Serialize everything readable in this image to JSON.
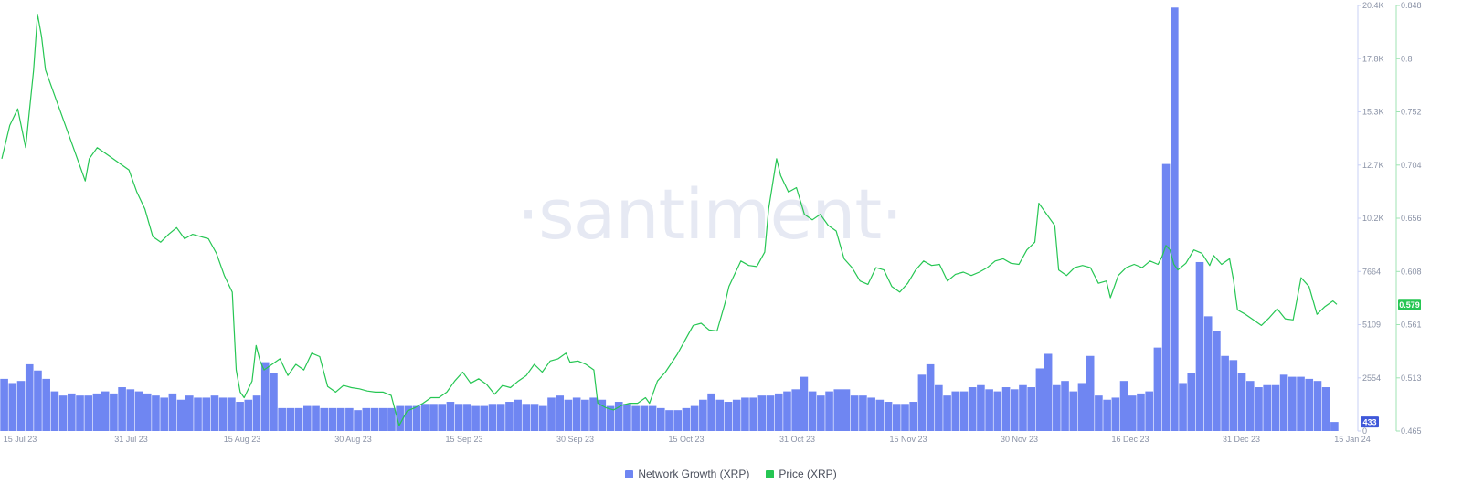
{
  "watermark": "·santiment·",
  "legend": [
    {
      "label": "Network Growth (XRP)",
      "color": "#6f86f2"
    },
    {
      "label": "Price (XRP)",
      "color": "#26c653"
    }
  ],
  "badges": {
    "price_current": "0.579",
    "growth_current": "433"
  },
  "chart_data": {
    "type": "bar+line",
    "title": "",
    "x_ticks": [
      "15 Jul 23",
      "31 Jul 23",
      "15 Aug 23",
      "30 Aug 23",
      "15 Sep 23",
      "30 Sep 23",
      "15 Oct 23",
      "31 Oct 23",
      "15 Nov 23",
      "30 Nov 23",
      "16 Dec 23",
      "31 Dec 23",
      "15 Jan 24"
    ],
    "y_left_ticks": [
      "0",
      "2554",
      "5109",
      "7664",
      "10.2K",
      "12.7K",
      "15.3K",
      "17.8K",
      "20.4K"
    ],
    "y_right_ticks": [
      "0.465",
      "0.513",
      "0.561",
      "0.608",
      "0.656",
      "0.704",
      "0.752",
      "0.8",
      "0.848"
    ],
    "growth_ylim": [
      0,
      20400
    ],
    "price_ylim": [
      0.465,
      0.848
    ],
    "series": [
      {
        "name": "Network Growth (XRP)",
        "kind": "bar",
        "color": "#6f86f2",
        "values": [
          2500,
          2300,
          2400,
          3200,
          2900,
          2500,
          1900,
          1700,
          1800,
          1700,
          1700,
          1800,
          1900,
          1800,
          2100,
          2000,
          1900,
          1800,
          1700,
          1600,
          1800,
          1500,
          1700,
          1600,
          1600,
          1700,
          1600,
          1600,
          1400,
          1500,
          1700,
          3300,
          2800,
          1100,
          1100,
          1100,
          1200,
          1200,
          1100,
          1100,
          1100,
          1100,
          1000,
          1100,
          1100,
          1100,
          1100,
          1200,
          1200,
          1200,
          1300,
          1300,
          1300,
          1400,
          1300,
          1300,
          1200,
          1200,
          1300,
          1300,
          1400,
          1500,
          1300,
          1300,
          1200,
          1600,
          1700,
          1500,
          1600,
          1500,
          1600,
          1500,
          1200,
          1400,
          1300,
          1200,
          1200,
          1200,
          1100,
          1000,
          1000,
          1100,
          1200,
          1500,
          1800,
          1500,
          1400,
          1500,
          1600,
          1600,
          1700,
          1700,
          1800,
          1900,
          2000,
          2600,
          1900,
          1700,
          1900,
          2000,
          2000,
          1700,
          1700,
          1600,
          1500,
          1400,
          1300,
          1300,
          1400,
          2700,
          3200,
          2200,
          1700,
          1900,
          1900,
          2100,
          2200,
          2000,
          1900,
          2100,
          2000,
          2200,
          2100,
          3000,
          3700,
          2200,
          2400,
          1900,
          2300,
          3600,
          1700,
          1500,
          1600,
          2400,
          1700,
          1800,
          1900,
          4000,
          12800,
          20300,
          2300,
          2800,
          8100,
          5500,
          4800,
          3600,
          3400,
          2800,
          2400,
          2100,
          2200,
          2200,
          2700,
          2600,
          2600,
          2500,
          2400,
          2100,
          433
        ]
      },
      {
        "name": "Price (XRP)",
        "kind": "line",
        "color": "#26c653",
        "points": [
          [
            0,
            0.71
          ],
          [
            2,
            0.74
          ],
          [
            4,
            0.755
          ],
          [
            6,
            0.72
          ],
          [
            8,
            0.79
          ],
          [
            9,
            0.84
          ],
          [
            10,
            0.82
          ],
          [
            11,
            0.79
          ],
          [
            13,
            0.77
          ],
          [
            16,
            0.74
          ],
          [
            18,
            0.72
          ],
          [
            20,
            0.7
          ],
          [
            21,
            0.69
          ],
          [
            22,
            0.71
          ],
          [
            24,
            0.72
          ],
          [
            26,
            0.715
          ],
          [
            28,
            0.71
          ],
          [
            30,
            0.705
          ],
          [
            32,
            0.7
          ],
          [
            34,
            0.68
          ],
          [
            36,
            0.665
          ],
          [
            38,
            0.64
          ],
          [
            40,
            0.635
          ],
          [
            42,
            0.642
          ],
          [
            44,
            0.648
          ],
          [
            46,
            0.638
          ],
          [
            48,
            0.642
          ],
          [
            50,
            0.64
          ],
          [
            52,
            0.638
          ],
          [
            54,
            0.625
          ],
          [
            56,
            0.605
          ],
          [
            58,
            0.59
          ],
          [
            59,
            0.52
          ],
          [
            60,
            0.5
          ],
          [
            61,
            0.495
          ],
          [
            63,
            0.51
          ],
          [
            64,
            0.542
          ],
          [
            65,
            0.528
          ],
          [
            66,
            0.52
          ],
          [
            68,
            0.525
          ],
          [
            70,
            0.53
          ],
          [
            72,
            0.515
          ],
          [
            74,
            0.525
          ],
          [
            76,
            0.52
          ],
          [
            78,
            0.535
          ],
          [
            80,
            0.532
          ],
          [
            82,
            0.505
          ],
          [
            84,
            0.5
          ],
          [
            86,
            0.506
          ],
          [
            88,
            0.504
          ],
          [
            90,
            0.503
          ],
          [
            92,
            0.501
          ],
          [
            94,
            0.5
          ],
          [
            96,
            0.5
          ],
          [
            98,
            0.497
          ],
          [
            100,
            0.47
          ],
          [
            102,
            0.483
          ],
          [
            104,
            0.486
          ],
          [
            106,
            0.49
          ],
          [
            108,
            0.495
          ],
          [
            110,
            0.495
          ],
          [
            112,
            0.5
          ],
          [
            114,
            0.51
          ],
          [
            116,
            0.518
          ],
          [
            118,
            0.508
          ],
          [
            120,
            0.512
          ],
          [
            122,
            0.507
          ],
          [
            124,
            0.498
          ],
          [
            126,
            0.506
          ],
          [
            128,
            0.504
          ],
          [
            130,
            0.51
          ],
          [
            132,
            0.515
          ],
          [
            134,
            0.525
          ],
          [
            136,
            0.518
          ],
          [
            138,
            0.528
          ],
          [
            140,
            0.53
          ],
          [
            142,
            0.535
          ],
          [
            143,
            0.527
          ],
          [
            145,
            0.528
          ],
          [
            147,
            0.525
          ],
          [
            149,
            0.52
          ],
          [
            150,
            0.49
          ],
          [
            152,
            0.486
          ],
          [
            154,
            0.484
          ],
          [
            156,
            0.488
          ],
          [
            158,
            0.49
          ],
          [
            160,
            0.49
          ],
          [
            162,
            0.495
          ],
          [
            163,
            0.49
          ],
          [
            165,
            0.51
          ],
          [
            167,
            0.518
          ],
          [
            170,
            0.534
          ],
          [
            172,
            0.547
          ],
          [
            174,
            0.56
          ],
          [
            176,
            0.562
          ],
          [
            178,
            0.556
          ],
          [
            180,
            0.555
          ],
          [
            182,
            0.58
          ],
          [
            183,
            0.595
          ],
          [
            186,
            0.618
          ],
          [
            188,
            0.614
          ],
          [
            190,
            0.613
          ],
          [
            192,
            0.626
          ],
          [
            193,
            0.665
          ],
          [
            195,
            0.71
          ],
          [
            196,
            0.695
          ],
          [
            198,
            0.68
          ],
          [
            200,
            0.684
          ],
          [
            202,
            0.66
          ],
          [
            204,
            0.655
          ],
          [
            206,
            0.66
          ],
          [
            208,
            0.65
          ],
          [
            210,
            0.645
          ],
          [
            212,
            0.62
          ],
          [
            214,
            0.612
          ],
          [
            216,
            0.6
          ],
          [
            218,
            0.597
          ],
          [
            220,
            0.612
          ],
          [
            222,
            0.61
          ],
          [
            224,
            0.595
          ],
          [
            226,
            0.59
          ],
          [
            228,
            0.598
          ],
          [
            230,
            0.61
          ],
          [
            232,
            0.618
          ],
          [
            234,
            0.614
          ],
          [
            236,
            0.615
          ],
          [
            238,
            0.6
          ],
          [
            240,
            0.606
          ],
          [
            242,
            0.608
          ],
          [
            244,
            0.605
          ],
          [
            246,
            0.608
          ],
          [
            248,
            0.612
          ],
          [
            250,
            0.618
          ],
          [
            252,
            0.62
          ],
          [
            254,
            0.616
          ],
          [
            256,
            0.615
          ],
          [
            258,
            0.628
          ],
          [
            260,
            0.635
          ],
          [
            261,
            0.67
          ],
          [
            262,
            0.665
          ],
          [
            264,
            0.655
          ],
          [
            265,
            0.65
          ],
          [
            266,
            0.61
          ],
          [
            268,
            0.605
          ],
          [
            270,
            0.612
          ],
          [
            272,
            0.614
          ],
          [
            274,
            0.612
          ],
          [
            276,
            0.598
          ],
          [
            278,
            0.6
          ],
          [
            279,
            0.585
          ],
          [
            281,
            0.605
          ],
          [
            283,
            0.612
          ],
          [
            285,
            0.615
          ],
          [
            287,
            0.612
          ],
          [
            289,
            0.618
          ],
          [
            291,
            0.615
          ],
          [
            292,
            0.622
          ],
          [
            293,
            0.632
          ],
          [
            294,
            0.628
          ],
          [
            295,
            0.615
          ],
          [
            296,
            0.61
          ],
          [
            298,
            0.616
          ],
          [
            300,
            0.628
          ],
          [
            302,
            0.625
          ],
          [
            304,
            0.614
          ],
          [
            305,
            0.623
          ],
          [
            307,
            0.615
          ],
          [
            309,
            0.62
          ],
          [
            310,
            0.601
          ],
          [
            311,
            0.574
          ],
          [
            313,
            0.57
          ],
          [
            315,
            0.565
          ],
          [
            317,
            0.56
          ],
          [
            319,
            0.567
          ],
          [
            321,
            0.575
          ],
          [
            323,
            0.566
          ],
          [
            325,
            0.565
          ],
          [
            327,
            0.603
          ],
          [
            329,
            0.595
          ],
          [
            331,
            0.57
          ],
          [
            333,
            0.577
          ],
          [
            335,
            0.582
          ],
          [
            336,
            0.579
          ]
        ]
      }
    ]
  }
}
